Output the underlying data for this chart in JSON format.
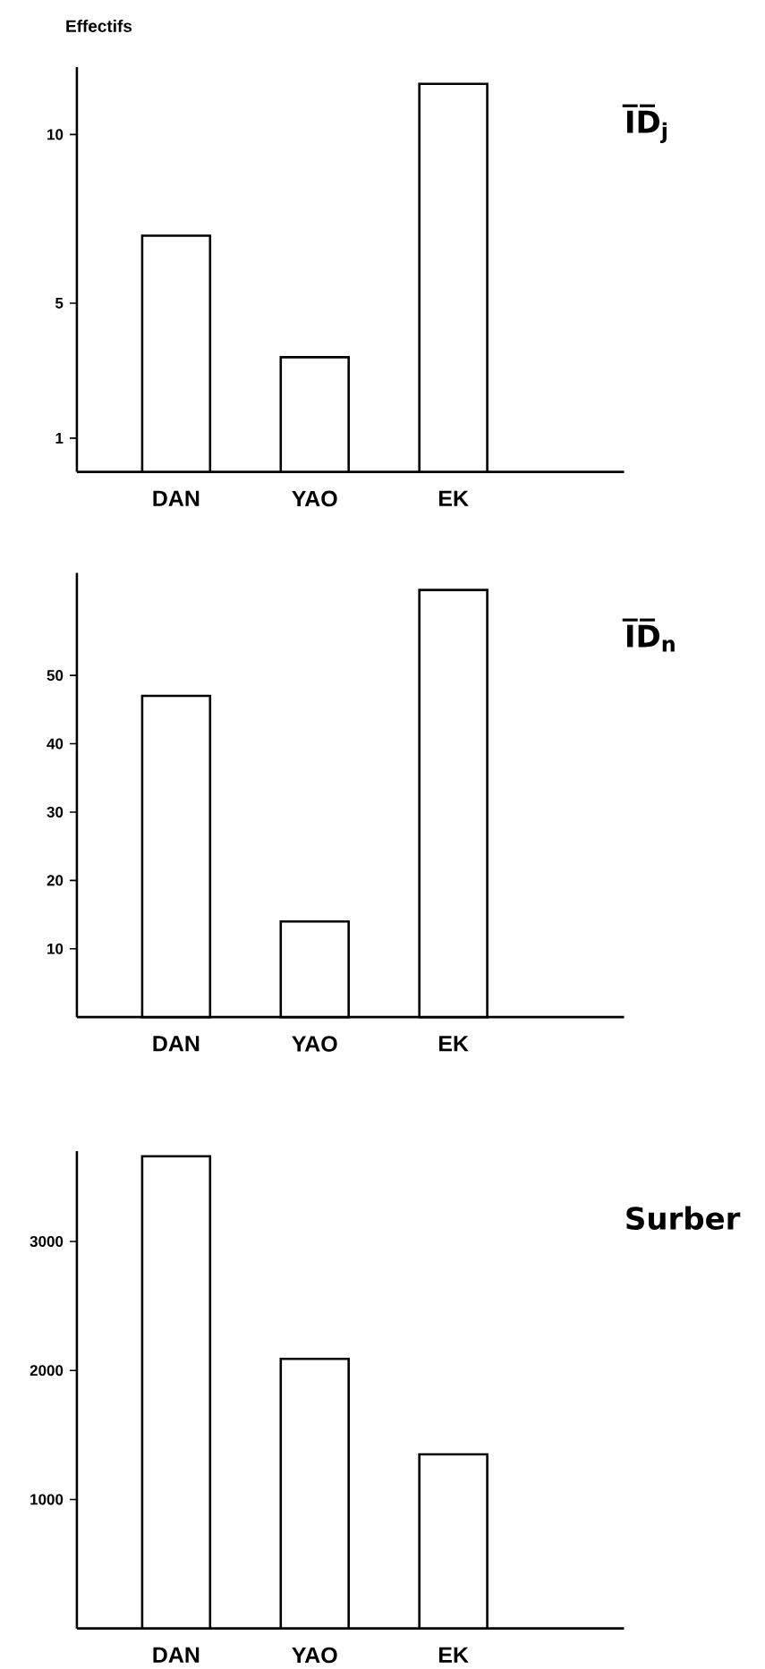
{
  "chart_data": [
    {
      "type": "bar",
      "title": "I̅D̅$_{j}$",
      "ylabel": "Effectifs",
      "categories": [
        "DAN",
        "YAO",
        "EK"
      ],
      "values": [
        7,
        3.4,
        11.5
      ],
      "color": "#ffffff",
      "ylim": [
        0,
        12
      ],
      "yticks": [
        1,
        5,
        10
      ]
    },
    {
      "type": "bar",
      "title": "I̅D̅$_{n}$",
      "categories": [
        "DAN",
        "YAO",
        "EK"
      ],
      "values": [
        47,
        14,
        62.5
      ],
      "color": "#ffffff",
      "ylim": [
        0,
        65
      ],
      "yticks": [
        10,
        20,
        30,
        40,
        50
      ]
    },
    {
      "type": "bar",
      "title": "Surber",
      "categories": [
        "DAN",
        "YAO",
        "EK"
      ],
      "values": [
        3660,
        2090,
        1350
      ],
      "color": "#ffffff",
      "ylim": [
        0,
        3700
      ],
      "yticks": [
        1000,
        2000,
        3000
      ]
    }
  ]
}
